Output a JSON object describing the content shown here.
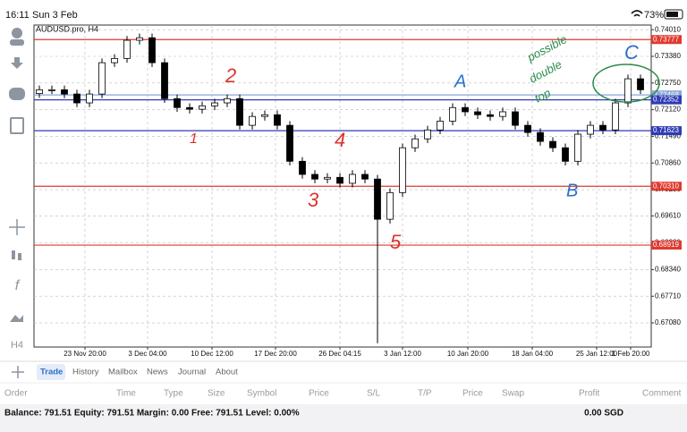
{
  "status_bar": {
    "time": "16:11",
    "date": "Sun 3 Feb",
    "battery": "73%"
  },
  "toolbar": {
    "formula_icon": "f",
    "timeframe": "H4"
  },
  "chart_data": {
    "type": "candlestick",
    "title": "AUDUSD.pro, H4",
    "candles": [
      [
        0.725,
        0.7269,
        0.724,
        0.7259
      ],
      [
        0.7259,
        0.7269,
        0.7249,
        0.7259
      ],
      [
        0.7259,
        0.7269,
        0.7239,
        0.7249
      ],
      [
        0.7249,
        0.7259,
        0.7218,
        0.7228
      ],
      [
        0.7228,
        0.7259,
        0.7218,
        0.7249
      ],
      [
        0.7249,
        0.7333,
        0.7239,
        0.7323
      ],
      [
        0.7323,
        0.7343,
        0.7313,
        0.7333
      ],
      [
        0.7333,
        0.7386,
        0.7323,
        0.7376
      ],
      [
        0.7376,
        0.7392,
        0.7366,
        0.7382
      ],
      [
        0.7382,
        0.7392,
        0.7313,
        0.7323
      ],
      [
        0.7323,
        0.7333,
        0.7228,
        0.7238
      ],
      [
        0.7238,
        0.7248,
        0.7207,
        0.7217
      ],
      [
        0.7217,
        0.7227,
        0.7203,
        0.7213
      ],
      [
        0.7213,
        0.7231,
        0.7203,
        0.7221
      ],
      [
        0.7221,
        0.7238,
        0.7211,
        0.7228
      ],
      [
        0.7228,
        0.7248,
        0.7218,
        0.7238
      ],
      [
        0.7238,
        0.7248,
        0.7165,
        0.7175
      ],
      [
        0.7175,
        0.7206,
        0.7165,
        0.7196
      ],
      [
        0.7196,
        0.721,
        0.7186,
        0.72
      ],
      [
        0.72,
        0.721,
        0.7165,
        0.7175
      ],
      [
        0.7175,
        0.7185,
        0.708,
        0.709
      ],
      [
        0.709,
        0.71,
        0.7049,
        0.7059
      ],
      [
        0.7059,
        0.7069,
        0.7038,
        0.7048
      ],
      [
        0.7048,
        0.7062,
        0.7038,
        0.7052
      ],
      [
        0.7052,
        0.7062,
        0.7028,
        0.7038
      ],
      [
        0.7038,
        0.7069,
        0.7028,
        0.7059
      ],
      [
        0.7059,
        0.7069,
        0.7038,
        0.7048
      ],
      [
        0.7048,
        0.7058,
        0.666,
        0.6953
      ],
      [
        0.6953,
        0.7026,
        0.6943,
        0.7016
      ],
      [
        0.7016,
        0.7132,
        0.7006,
        0.7122
      ],
      [
        0.7122,
        0.7153,
        0.7112,
        0.7143
      ],
      [
        0.7143,
        0.7174,
        0.7133,
        0.7164
      ],
      [
        0.7164,
        0.7195,
        0.7154,
        0.7185
      ],
      [
        0.7185,
        0.7227,
        0.7175,
        0.7217
      ],
      [
        0.7217,
        0.7227,
        0.7197,
        0.7207
      ],
      [
        0.7207,
        0.7217,
        0.719,
        0.72
      ],
      [
        0.72,
        0.721,
        0.7186,
        0.7196
      ],
      [
        0.7196,
        0.7217,
        0.7186,
        0.7207
      ],
      [
        0.7207,
        0.7217,
        0.7165,
        0.7175
      ],
      [
        0.7175,
        0.7185,
        0.7148,
        0.7158
      ],
      [
        0.7158,
        0.7168,
        0.7127,
        0.7137
      ],
      [
        0.7137,
        0.7147,
        0.7112,
        0.7122
      ],
      [
        0.7122,
        0.7132,
        0.708,
        0.709
      ],
      [
        0.709,
        0.7164,
        0.708,
        0.7154
      ],
      [
        0.7154,
        0.7185,
        0.7144,
        0.7175
      ],
      [
        0.7175,
        0.7185,
        0.7154,
        0.7164
      ],
      [
        0.7164,
        0.7238,
        0.7154,
        0.7228
      ],
      [
        0.7228,
        0.7295,
        0.7218,
        0.7285
      ],
      [
        0.7285,
        0.7295,
        0.7249,
        0.7259
      ]
    ],
    "up_color": "#ffffff",
    "down_color": "#000000",
    "ylim": [
      0.6651,
      0.7412
    ],
    "yticks": [
      {
        "value": 0.7401,
        "label": "0.74010"
      },
      {
        "value": 0.7338,
        "label": "0.73380"
      },
      {
        "value": 0.7275,
        "label": "0.72750"
      },
      {
        "value": 0.7212,
        "label": "0.72120"
      },
      {
        "value": 0.7149,
        "label": "0.71490"
      },
      {
        "value": 0.7086,
        "label": "0.70860"
      },
      {
        "value": 0.7023,
        "label": "0.70230"
      },
      {
        "value": 0.6961,
        "label": "0.69610"
      },
      {
        "value": 0.6898,
        "label": "0.68980"
      },
      {
        "value": 0.6834,
        "label": "0.68340"
      },
      {
        "value": 0.6771,
        "label": "0.67710"
      },
      {
        "value": 0.6708,
        "label": "0.67080"
      }
    ],
    "x_labels": [
      "23 Nov 20:00",
      "3 Dec 04:00",
      "10 Dec 12:00",
      "17 Dec 20:00",
      "26 Dec 04:15",
      "3 Jan 12:00",
      "10 Jan 20:00",
      "18 Jan 04:00",
      "25 Jan 12:00",
      "1 Feb 20:00"
    ],
    "grid": true,
    "levels": [
      {
        "value": 0.73777,
        "label": "0.73777",
        "color": "#e03a2f"
      },
      {
        "value": 0.72468,
        "label": "0.72468",
        "color": "#8aa6d8"
      },
      {
        "value": 0.72352,
        "label": "0.72352",
        "color": "#2f3bb5"
      },
      {
        "value": 0.71623,
        "label": "0.71623",
        "color": "#2f3bb5"
      },
      {
        "value": 0.7031,
        "label": "0.70310",
        "color": "#e03a2f"
      },
      {
        "value": 0.68919,
        "label": "0.68919",
        "color": "#e03a2f"
      }
    ],
    "annotations": [
      {
        "text": "2",
        "color": "#d9342b"
      },
      {
        "text": "1",
        "color": "#d9342b"
      },
      {
        "text": "4",
        "color": "#d9342b"
      },
      {
        "text": "3",
        "color": "#d9342b"
      },
      {
        "text": "5",
        "color": "#d9342b"
      },
      {
        "text": "A",
        "color": "#2a6fc9"
      },
      {
        "text": "B",
        "color": "#2a6fc9"
      },
      {
        "text": "C",
        "color": "#2a6fc9"
      },
      {
        "text": "possible",
        "color": "#2b8a4a"
      },
      {
        "text": "double",
        "color": "#2b8a4a"
      },
      {
        "text": "top",
        "color": "#2b8a4a"
      }
    ]
  },
  "tabs": [
    "Trade",
    "History",
    "Mailbox",
    "News",
    "Journal",
    "About"
  ],
  "columns": [
    "Order",
    "Time",
    "Type",
    "Size",
    "Symbol",
    "Price",
    "S/L",
    "T/P",
    "Price",
    "Swap",
    "Profit",
    "Comment"
  ],
  "footer": {
    "summary": "Balance: 791.51 Equity: 791.51 Margin: 0.00 Free: 791.51 Level: 0.00%",
    "total": "0.00 SGD"
  }
}
